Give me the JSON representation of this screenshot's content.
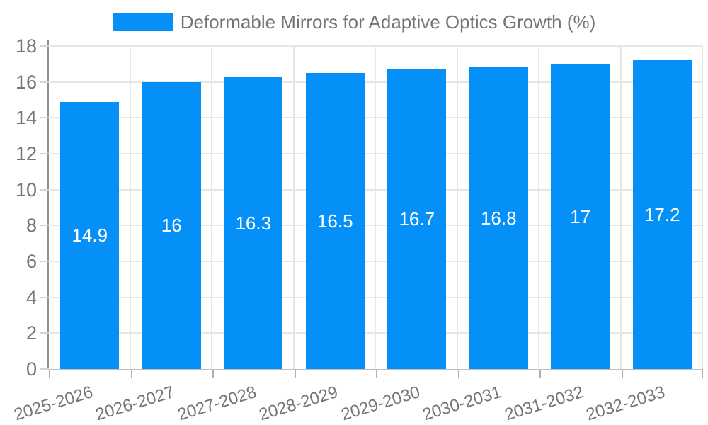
{
  "chart_data": {
    "type": "bar",
    "title": "Deformable Mirrors for Adaptive Optics Growth (%)",
    "categories": [
      "2025-2026",
      "2026-2027",
      "2027-2028",
      "2028-2029",
      "2029-2030",
      "2030-2031",
      "2031-2032",
      "2032-2033"
    ],
    "values": [
      14.9,
      16,
      16.3,
      16.5,
      16.7,
      16.8,
      17,
      17.2
    ],
    "bar_labels": [
      "14.9",
      "16",
      "16.3",
      "16.5",
      "16.7",
      "16.8",
      "17",
      "17.2"
    ],
    "xlabel": "",
    "ylabel": "",
    "ylim": [
      0,
      18
    ],
    "ytick_step": 2,
    "ytick_labels": [
      "0",
      "2",
      "4",
      "6",
      "8",
      "10",
      "12",
      "14",
      "16",
      "18"
    ],
    "grid": true,
    "xtick_rotation_deg": -17,
    "legend": {
      "position": "top-center",
      "entries": [
        {
          "label": "Deformable Mirrors for Adaptive Optics Growth (%)",
          "color": "#0590f8"
        }
      ]
    },
    "colors": {
      "bar": "#0590f8",
      "bar_label": "#ffffff",
      "axis_text": "#757575",
      "y_axis_line": "#8f8f8f",
      "x_axis_line": "#bfbfbf",
      "gridline": "#e6e6e6",
      "background": "#ffffff"
    }
  }
}
